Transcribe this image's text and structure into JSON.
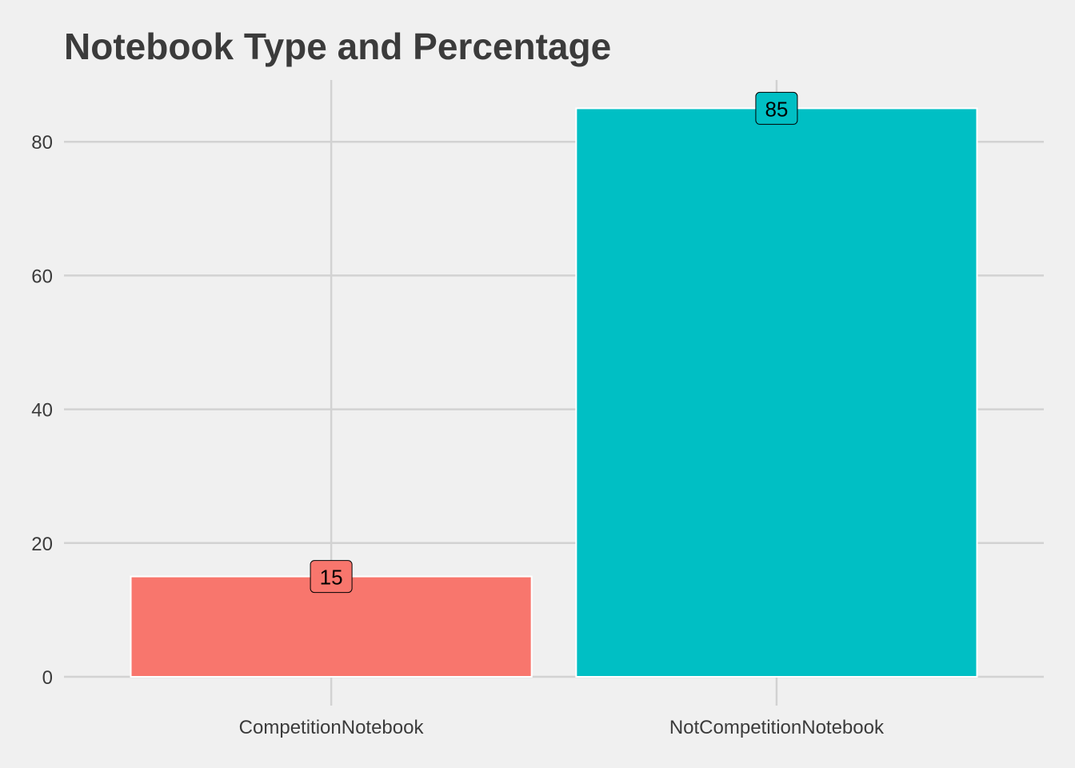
{
  "chart_data": {
    "type": "bar",
    "title": "Notebook Type and Percentage",
    "xlabel": "",
    "ylabel": "",
    "categories": [
      "CompetitionNotebook",
      "NotCompetitionNotebook"
    ],
    "values": [
      15,
      85
    ],
    "data_labels": [
      "15",
      "85"
    ],
    "colors": [
      "#f8766d",
      "#00bfc4"
    ],
    "y_ticks": [
      0,
      20,
      40,
      60,
      80
    ],
    "y_tick_labels": [
      "0",
      "20",
      "40",
      "60",
      "80"
    ],
    "ylim": [
      0,
      89.25
    ],
    "grid": true,
    "legend": "none",
    "background": "#f0f0f0",
    "grid_color": "#d2d2d2",
    "text_color": "#3b3b3b"
  }
}
